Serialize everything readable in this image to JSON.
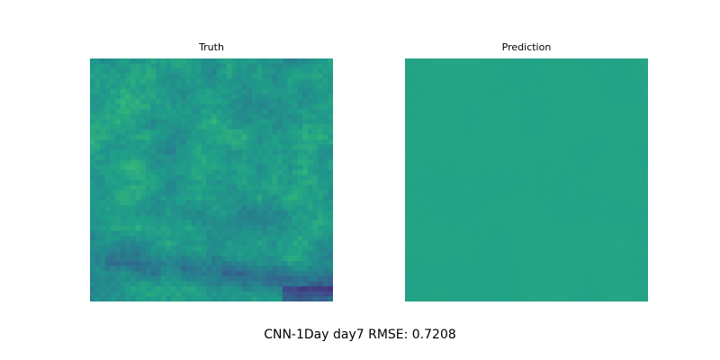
{
  "figure": {
    "caption": "CNN-1Day day7 RMSE: 0.7208"
  },
  "chart_data": [
    {
      "type": "heatmap",
      "title": "Truth",
      "colormap": "viridis",
      "axes_visible": false,
      "grid": false,
      "legend": "none",
      "description_values": {
        "dominant_color": "#2fae7a",
        "low_region_color": "#3b528b",
        "min_color": "#472c7a"
      }
    },
    {
      "type": "heatmap",
      "title": "Prediction",
      "colormap": "viridis",
      "axes_visible": false,
      "grid": false,
      "legend": "none",
      "description_values": {
        "dominant_color": "#23a983"
      }
    }
  ]
}
